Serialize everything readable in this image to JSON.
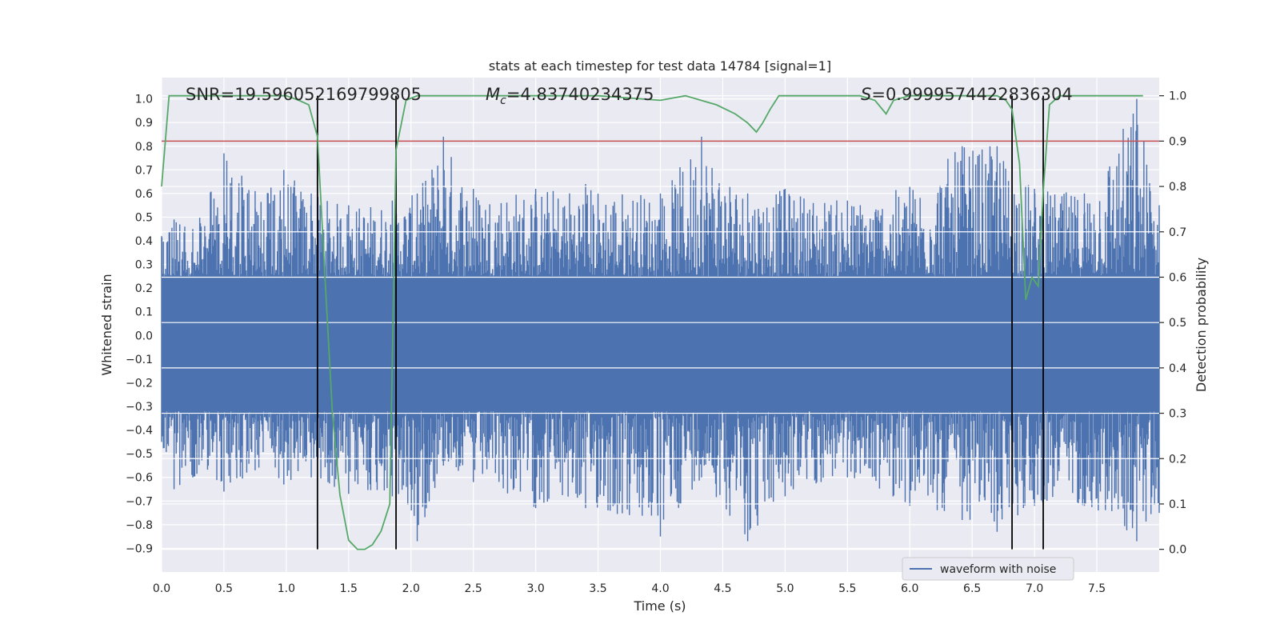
{
  "chart_data": {
    "type": "line",
    "title": "stats at each timestep for test data 14784 [signal=1]",
    "xlabel": "Time (s)",
    "ylabel": "Whitened strain",
    "y2label": "Detection probability",
    "xlim": [
      0.0,
      8.0
    ],
    "ylim": [
      -1.0,
      1.09
    ],
    "y2lim": [
      -0.05,
      1.04
    ],
    "x_ticks": [
      0.0,
      0.5,
      1.0,
      1.5,
      2.0,
      2.5,
      3.0,
      3.5,
      4.0,
      4.5,
      5.0,
      5.5,
      6.0,
      6.5,
      7.0,
      7.5
    ],
    "x_tick_labels": [
      "0.0",
      "0.5",
      "1.0",
      "1.5",
      "2.0",
      "2.5",
      "3.0",
      "3.5",
      "4.0",
      "4.5",
      "5.0",
      "5.5",
      "6.0",
      "6.5",
      "7.0",
      "7.5"
    ],
    "y_ticks": [
      -0.9,
      -0.8,
      -0.7,
      -0.6,
      -0.5,
      -0.4,
      -0.3,
      -0.2,
      -0.1,
      0.0,
      0.1,
      0.2,
      0.3,
      0.4,
      0.5,
      0.6,
      0.7,
      0.8,
      0.9,
      1.0
    ],
    "y_tick_labels": [
      "−0.9",
      "−0.8",
      "−0.7",
      "−0.6",
      "−0.5",
      "−0.4",
      "−0.3",
      "−0.2",
      "−0.1",
      "0.0",
      "0.1",
      "0.2",
      "0.3",
      "0.4",
      "0.5",
      "0.6",
      "0.7",
      "0.8",
      "0.9",
      "1.0"
    ],
    "y2_ticks": [
      0.0,
      0.1,
      0.2,
      0.3,
      0.4,
      0.5,
      0.6,
      0.7,
      0.8,
      0.9,
      1.0
    ],
    "y2_tick_labels": [
      "0.0",
      "0.1",
      "0.2",
      "0.3",
      "0.4",
      "0.5",
      "0.6",
      "0.7",
      "0.8",
      "0.9",
      "1.0"
    ],
    "annotations": {
      "snr": "SNR=19.596052169799805",
      "mc_symbol": "M",
      "mc_sub": "c",
      "mc_value": "=4.83740234375",
      "s_symbol": "S",
      "s_value": "=0.9999574422836304"
    },
    "threshold": {
      "axis": "right",
      "value": 0.9,
      "color": "#c44e52"
    },
    "vertical_lines": [
      1.25,
      1.88,
      6.82,
      7.07
    ],
    "vertical_line_range_right_axis": [
      0.0,
      1.0
    ],
    "series": [
      {
        "name": "waveform with noise",
        "color": "#4c72b0",
        "axis": "left",
        "style": "noise-band",
        "core_band": [
          -0.32,
          0.25
        ],
        "envelope_points": [
          {
            "x": 0.0,
            "upper": 0.42,
            "lower": -0.45
          },
          {
            "x": 0.1,
            "upper": 0.49,
            "lower": -0.65
          },
          {
            "x": 0.25,
            "upper": 0.45,
            "lower": -0.6
          },
          {
            "x": 0.5,
            "upper": 0.77,
            "lower": -0.66
          },
          {
            "x": 0.75,
            "upper": 0.61,
            "lower": -0.57
          },
          {
            "x": 0.98,
            "upper": 0.7,
            "lower": -0.63
          },
          {
            "x": 1.2,
            "upper": 0.6,
            "lower": -0.6
          },
          {
            "x": 1.5,
            "upper": 0.55,
            "lower": -0.67
          },
          {
            "x": 1.85,
            "upper": 0.57,
            "lower": -0.68
          },
          {
            "x": 2.05,
            "upper": 0.6,
            "lower": -0.87
          },
          {
            "x": 2.26,
            "upper": 0.84,
            "lower": -0.55
          },
          {
            "x": 2.5,
            "upper": 0.62,
            "lower": -0.62
          },
          {
            "x": 3.0,
            "upper": 0.62,
            "lower": -0.73
          },
          {
            "x": 3.4,
            "upper": 0.64,
            "lower": -0.73
          },
          {
            "x": 4.0,
            "upper": 0.6,
            "lower": -0.85
          },
          {
            "x": 4.33,
            "upper": 0.84,
            "lower": -0.6
          },
          {
            "x": 4.7,
            "upper": 0.6,
            "lower": -0.87
          },
          {
            "x": 5.0,
            "upper": 0.62,
            "lower": -0.68
          },
          {
            "x": 5.5,
            "upper": 0.57,
            "lower": -0.6
          },
          {
            "x": 6.0,
            "upper": 0.63,
            "lower": -0.72
          },
          {
            "x": 6.42,
            "upper": 0.8,
            "lower": -0.78
          },
          {
            "x": 6.7,
            "upper": 0.8,
            "lower": -0.83
          },
          {
            "x": 7.0,
            "upper": 0.62,
            "lower": -0.72
          },
          {
            "x": 7.4,
            "upper": 0.6,
            "lower": -0.72
          },
          {
            "x": 7.82,
            "upper": 1.0,
            "lower": -0.87
          },
          {
            "x": 8.0,
            "upper": 0.55,
            "lower": -0.75
          }
        ]
      },
      {
        "name": "detection probability",
        "color": "#55a868",
        "axis": "right",
        "x": [
          0.0,
          0.06,
          0.15,
          1.0,
          1.1,
          1.18,
          1.25,
          1.31,
          1.37,
          1.43,
          1.5,
          1.57,
          1.63,
          1.69,
          1.76,
          1.83,
          1.88,
          1.96,
          2.05,
          2.5,
          3.0,
          3.5,
          4.0,
          4.2,
          4.45,
          4.6,
          4.7,
          4.77,
          4.82,
          4.88,
          4.95,
          5.05,
          5.6,
          5.72,
          5.81,
          5.87,
          6.0,
          6.5,
          6.7,
          6.77,
          6.82,
          6.88,
          6.93,
          6.98,
          7.03,
          7.07,
          7.12,
          7.2,
          7.87
        ],
        "y": [
          0.8,
          1.0,
          1.0,
          1.0,
          0.99,
          0.98,
          0.91,
          0.6,
          0.3,
          0.12,
          0.02,
          0.0,
          0.0,
          0.01,
          0.04,
          0.1,
          0.88,
          0.99,
          1.0,
          1.0,
          1.0,
          1.0,
          0.99,
          1.0,
          0.98,
          0.96,
          0.94,
          0.92,
          0.94,
          0.97,
          1.0,
          1.0,
          1.0,
          0.99,
          0.96,
          0.99,
          1.0,
          1.0,
          1.0,
          0.99,
          0.97,
          0.85,
          0.55,
          0.6,
          0.58,
          0.79,
          0.98,
          1.0,
          1.0
        ]
      }
    ],
    "legend": {
      "label": "waveform with noise",
      "loc": "lower-right"
    }
  }
}
